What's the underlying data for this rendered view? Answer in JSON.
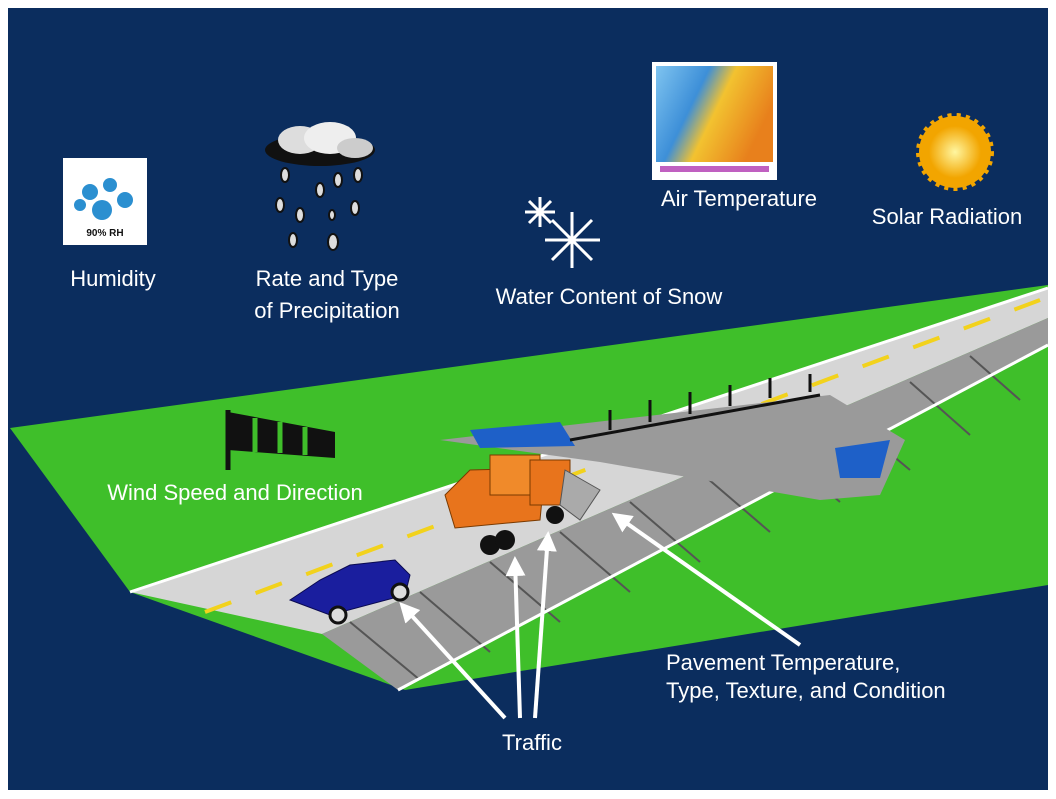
{
  "labels": {
    "humidity_icon": "90% RH",
    "humidity": "Humidity",
    "precipitation": [
      "Rate and Type",
      "of Precipitation"
    ],
    "snow": "Water Content of Snow",
    "air_temperature": "Air Temperature",
    "solar_radiation": "Solar Radiation",
    "wind": "Wind Speed and Direction",
    "pavement": [
      "Pavement Temperature,",
      "Type, Texture, and Condition"
    ],
    "traffic": "Traffic"
  }
}
